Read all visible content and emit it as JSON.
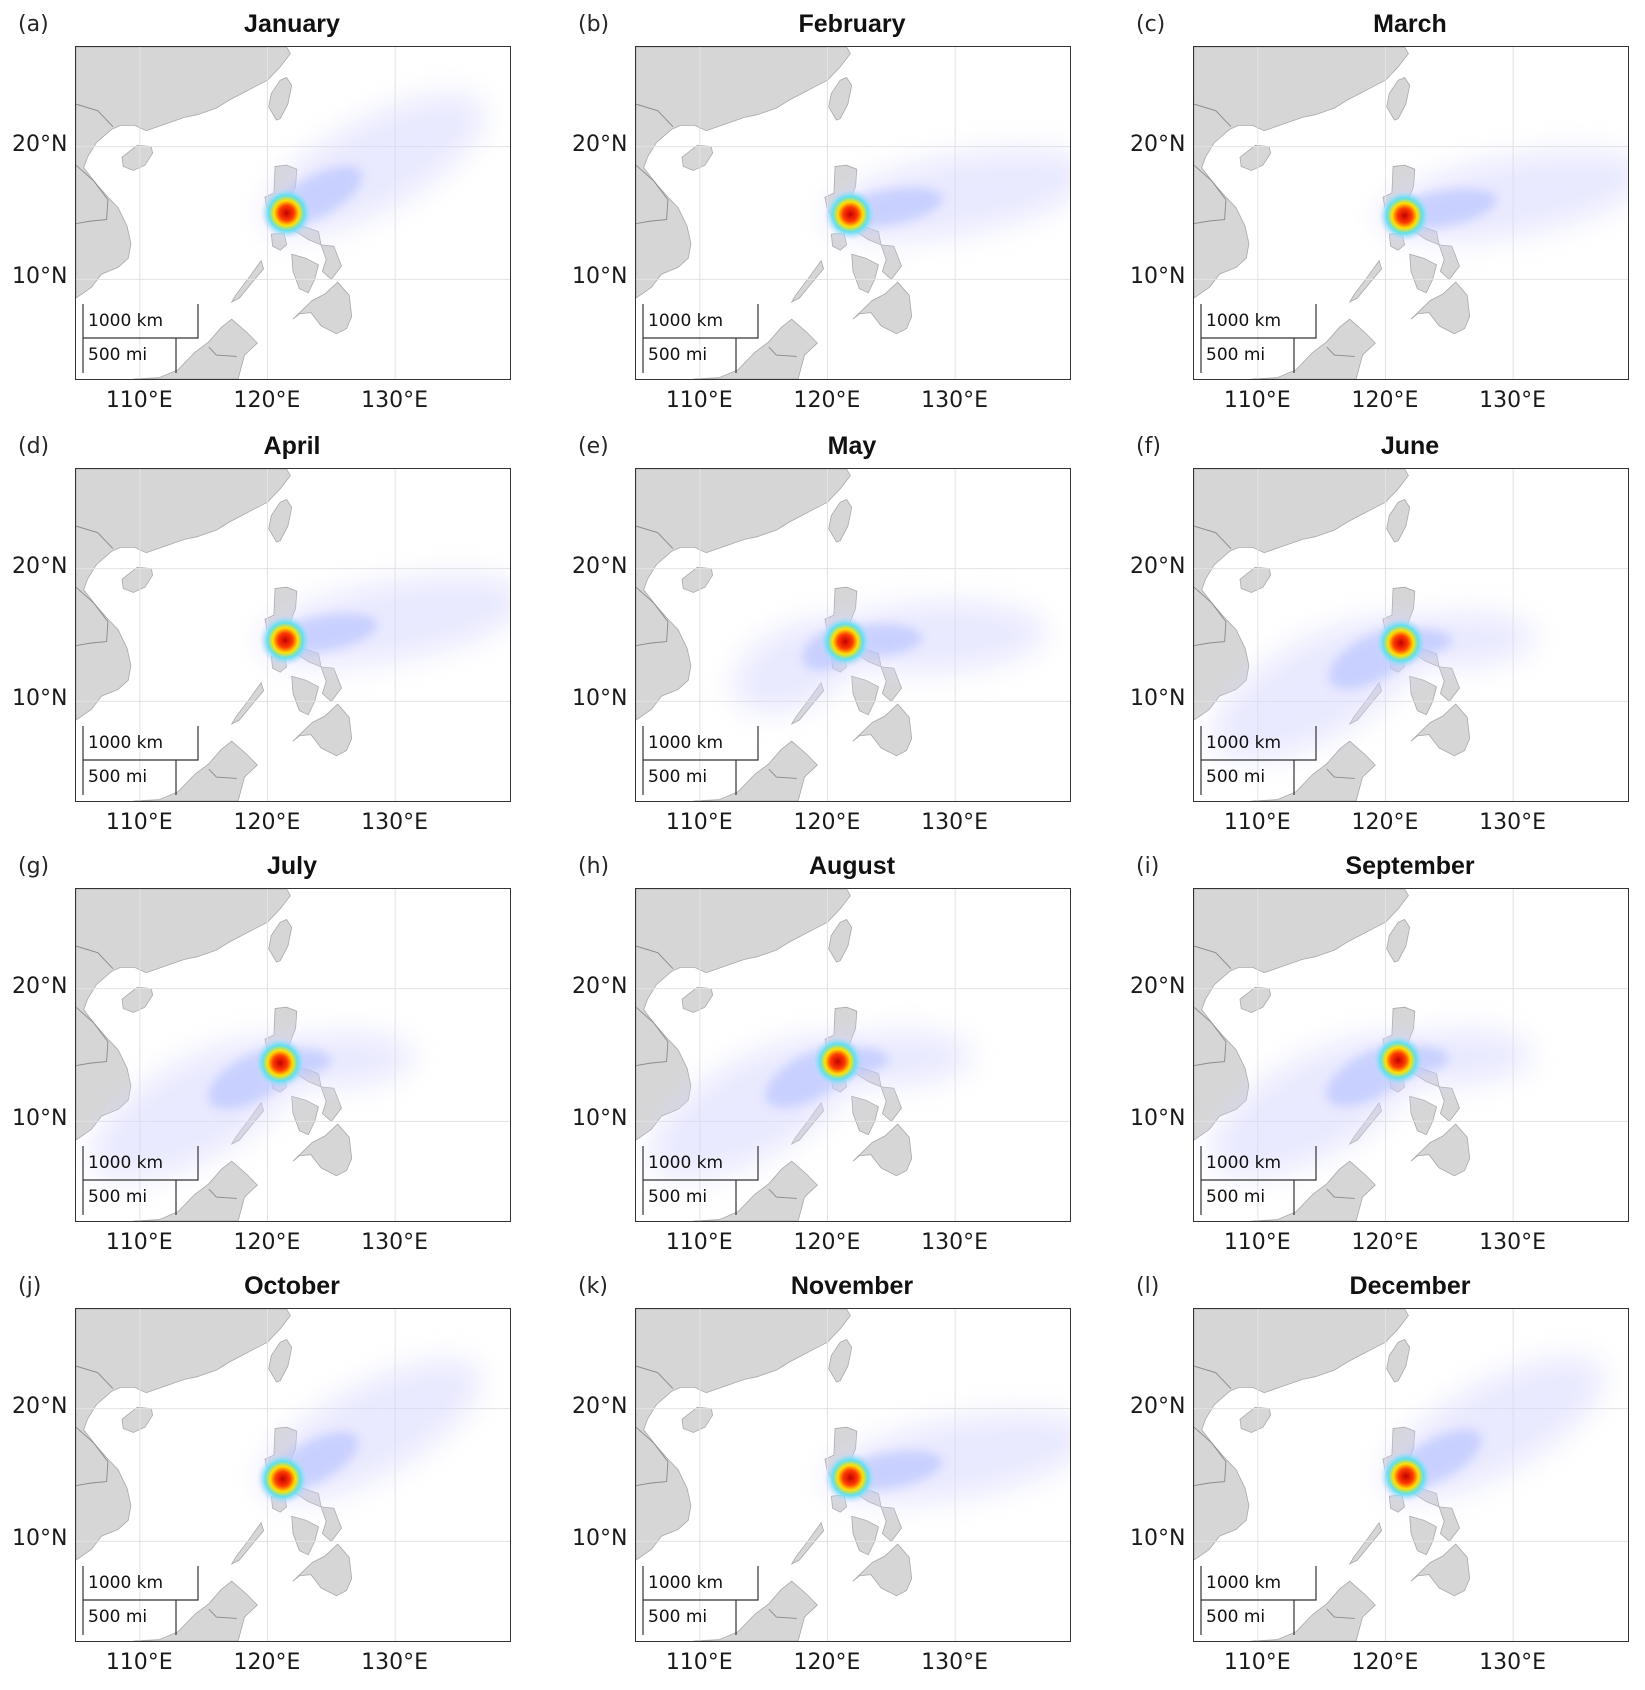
{
  "figure": {
    "lat_tick_labels": [
      "20°N",
      "10°N"
    ],
    "lon_tick_labels": [
      "110°E",
      "120°E",
      "130°E"
    ],
    "scale_bar": {
      "km_label": "1000 km",
      "mi_label": "500 mi"
    },
    "colors": {
      "land": "#d6d6d6",
      "coast": "#a9a9a9",
      "grid": "#e2e2e2",
      "density_low": "#d8d8ff",
      "density_mid": "#5ee0f0",
      "density_peak": "#c40000"
    },
    "panels": [
      {
        "letter": "(a)",
        "title": "January",
        "peak": [
          121.5,
          15.0
        ],
        "spread": "northeast"
      },
      {
        "letter": "(b)",
        "title": "February",
        "peak": [
          121.8,
          14.9
        ],
        "spread": "east"
      },
      {
        "letter": "(c)",
        "title": "March",
        "peak": [
          121.5,
          14.8
        ],
        "spread": "east"
      },
      {
        "letter": "(d)",
        "title": "April",
        "peak": [
          121.4,
          14.6
        ],
        "spread": "east"
      },
      {
        "letter": "(e)",
        "title": "May",
        "peak": [
          121.4,
          14.5
        ],
        "spread": "east-southwest"
      },
      {
        "letter": "(f)",
        "title": "June",
        "peak": [
          121.2,
          14.4
        ],
        "spread": "southwest"
      },
      {
        "letter": "(g)",
        "title": "July",
        "peak": [
          121.0,
          14.4
        ],
        "spread": "southwest"
      },
      {
        "letter": "(h)",
        "title": "August",
        "peak": [
          120.8,
          14.5
        ],
        "spread": "southwest"
      },
      {
        "letter": "(i)",
        "title": "September",
        "peak": [
          121.0,
          14.6
        ],
        "spread": "southwest"
      },
      {
        "letter": "(j)",
        "title": "October",
        "peak": [
          121.2,
          14.7
        ],
        "spread": "northeast"
      },
      {
        "letter": "(k)",
        "title": "November",
        "peak": [
          121.8,
          14.8
        ],
        "spread": "east"
      },
      {
        "letter": "(l)",
        "title": "December",
        "peak": [
          121.6,
          14.9
        ],
        "spread": "northeast"
      }
    ]
  }
}
